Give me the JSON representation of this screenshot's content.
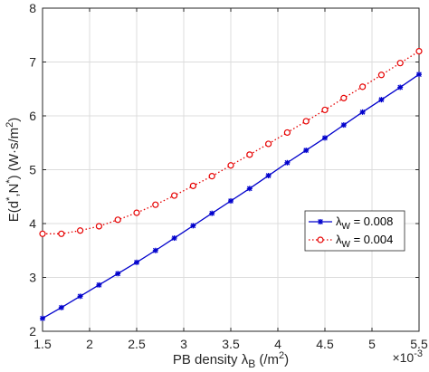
{
  "chart_data": {
    "type": "line",
    "x_multiplier_label": "×10",
    "x_multiplier_exponent": "-3",
    "xlabel": {
      "prefix": "PB density ",
      "symbol": "λ",
      "subscript": "B",
      "unit_open": " (/m",
      "unit_sup": "2",
      "unit_close": ")"
    },
    "ylabel": {
      "text1": "E(d",
      "star1": "*",
      "text2": ",N",
      "star2": "*",
      "text3": ") (W·s/m",
      "sup": "2",
      "text4": ")"
    },
    "xlim": [
      1.5,
      5.5
    ],
    "ylim": [
      2,
      8
    ],
    "xticks": [
      1.5,
      2,
      2.5,
      3,
      3.5,
      4,
      4.5,
      5,
      5.5
    ],
    "xtick_labels": [
      "1.5",
      "2",
      "2.5",
      "3",
      "3.5",
      "4",
      "4.5",
      "5",
      "5.5"
    ],
    "yticks": [
      2,
      3,
      4,
      5,
      6,
      7,
      8
    ],
    "ytick_labels": [
      "2",
      "3",
      "4",
      "5",
      "6",
      "7",
      "8"
    ],
    "grid": true,
    "legend_position": "middle-right",
    "x": [
      1.5,
      1.7,
      1.9,
      2.1,
      2.3,
      2.5,
      2.7,
      2.9,
      3.1,
      3.3,
      3.5,
      3.7,
      3.9,
      4.1,
      4.3,
      4.5,
      4.7,
      4.9,
      5.1,
      5.3,
      5.5
    ],
    "series": [
      {
        "label_symbol": "λ",
        "label_sub": "W",
        "label_value": " = 0.008",
        "color": "#0000cc",
        "marker": "asterisk",
        "linestyle": "solid",
        "values": [
          2.24,
          2.44,
          2.65,
          2.86,
          3.07,
          3.28,
          3.5,
          3.73,
          3.96,
          4.19,
          4.42,
          4.65,
          4.89,
          5.13,
          5.36,
          5.59,
          5.83,
          6.07,
          6.3,
          6.53,
          6.77
        ]
      },
      {
        "label_symbol": "λ",
        "label_sub": "W",
        "label_value": " = 0.004",
        "color": "#e60000",
        "marker": "circle",
        "linestyle": "dotted",
        "values": [
          3.81,
          3.81,
          3.87,
          3.95,
          4.07,
          4.2,
          4.35,
          4.52,
          4.7,
          4.88,
          5.08,
          5.28,
          5.48,
          5.69,
          5.9,
          6.11,
          6.33,
          6.54,
          6.76,
          6.98,
          7.2
        ]
      }
    ]
  }
}
